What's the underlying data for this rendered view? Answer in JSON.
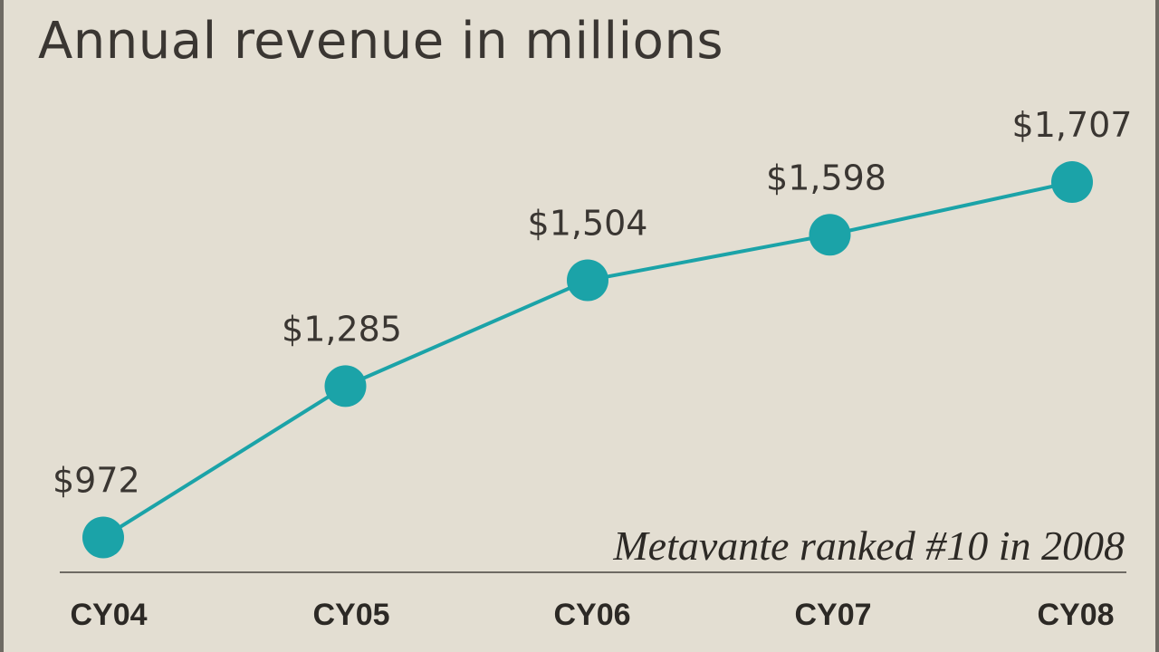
{
  "chart_data": {
    "type": "line",
    "title": "Annual revenue in millions",
    "categories": [
      "CY04",
      "CY05",
      "CY06",
      "CY07",
      "CY08"
    ],
    "values": [
      972,
      1285,
      1504,
      1598,
      1707
    ],
    "point_labels": [
      "$972",
      "$1,285",
      "$1,504",
      "$1,598",
      "$1,707"
    ],
    "annotation": "Metavante ranked #10 in 2008",
    "xlabel": "",
    "ylabel": "",
    "ylim": [
      900,
      1900
    ],
    "grid": false,
    "legend": "none",
    "colors": {
      "line": "#1ba3a8",
      "background": "#e3ded2",
      "text": "#3a3632",
      "frame": "#6e6a63"
    }
  }
}
